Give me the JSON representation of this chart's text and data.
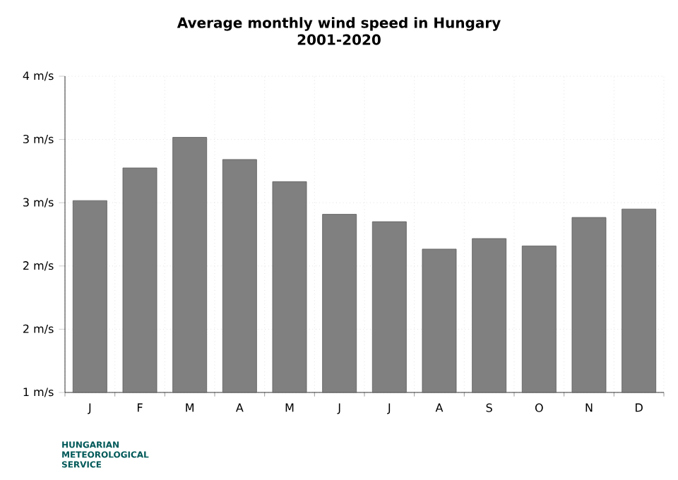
{
  "chart_data": {
    "type": "bar",
    "title": "Average monthly wind speed in Hungary",
    "subtitle": "2001-2020",
    "categories": [
      "J",
      "F",
      "M",
      "A",
      "M",
      "J",
      "J",
      "A",
      "S",
      "O",
      "N",
      "D"
    ],
    "values": [
      2.82,
      3.13,
      3.42,
      3.21,
      3.0,
      2.69,
      2.62,
      2.36,
      2.46,
      2.39,
      2.66,
      2.74
    ],
    "color": "#808080",
    "ylim": [
      1,
      4
    ],
    "yticks": [
      {
        "value": 1,
        "label": "1 m/s"
      },
      {
        "value": 1.6,
        "label": "2 m/s"
      },
      {
        "value": 2.2,
        "label": "2 m/s"
      },
      {
        "value": 2.8,
        "label": "3 m/s"
      },
      {
        "value": 3.4,
        "label": "3 m/s"
      },
      {
        "value": 4,
        "label": "4 m/s"
      }
    ],
    "grid": true,
    "annotations": [
      "HUNGARIAN METEOROLOGICAL SERVICE"
    ]
  }
}
